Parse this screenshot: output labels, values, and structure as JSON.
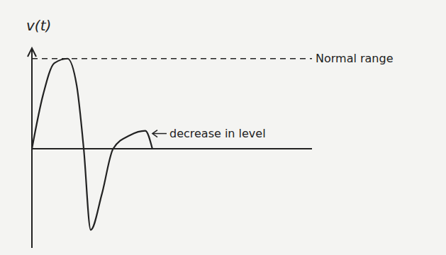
{
  "chart_data": {
    "type": "line",
    "y_label": "v(t)",
    "x": [
      0,
      0.4,
      0.8,
      1.27,
      1.6,
      1.85,
      2.1,
      2.5,
      2.9,
      3.5,
      4.05,
      4.3
    ],
    "values": [
      0,
      0.6,
      0.95,
      1,
      0.7,
      0,
      -0.9,
      -0.5,
      0,
      0.15,
      0.2,
      0
    ],
    "color": "#222222",
    "xlim": [
      0,
      10
    ],
    "ylim": [
      -1.1,
      1.1
    ],
    "xticks": [],
    "yticks": [],
    "tick_labels": false,
    "grid": false,
    "annotations": [
      {
        "text": "Normal range",
        "y": 1,
        "line_style": "dashed"
      },
      {
        "text": "decrease in level",
        "x": 4.05,
        "y": 0.2
      }
    ]
  }
}
